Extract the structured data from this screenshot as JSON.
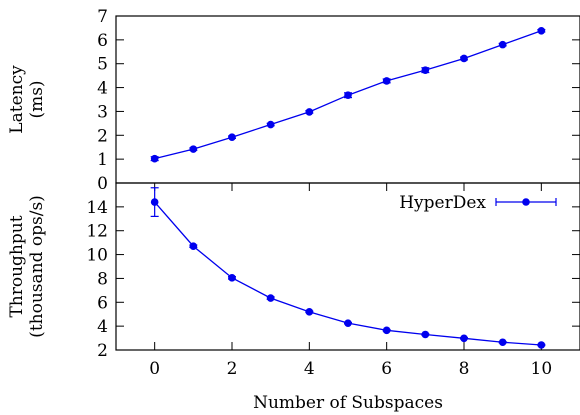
{
  "chart_data": [
    {
      "type": "line",
      "xlabel": "",
      "ylabel": [
        "Latency",
        "(ms)"
      ],
      "xlim": [
        -1,
        11
      ],
      "ylim": [
        0,
        7
      ],
      "yticks": [
        0,
        1,
        2,
        3,
        4,
        5,
        6,
        7
      ],
      "xticks": [],
      "grid": false,
      "color": "#0000ee",
      "series": [
        {
          "name": "",
          "x": [
            0,
            1,
            2,
            3,
            4,
            5,
            6,
            7,
            8,
            9,
            10
          ],
          "y": [
            1.02,
            1.42,
            1.92,
            2.45,
            2.98,
            3.68,
            4.28,
            4.73,
            5.22,
            5.8,
            6.38
          ],
          "err": [
            0.08,
            0.05,
            0.05,
            0.05,
            0.05,
            0.1,
            0.08,
            0.1,
            0.06,
            0.05,
            0.05
          ]
        }
      ]
    },
    {
      "type": "line",
      "xlabel": "Number of Subspaces",
      "ylabel": [
        "Throughput",
        "(thousand ops/s)"
      ],
      "xlim": [
        -1,
        11
      ],
      "ylim": [
        2,
        16
      ],
      "yticks": [
        2,
        4,
        6,
        8,
        10,
        12,
        14
      ],
      "xticks": [
        0,
        2,
        4,
        6,
        8,
        10
      ],
      "grid": false,
      "legend": "top-right",
      "color": "#0000ee",
      "series": [
        {
          "name": "HyperDex",
          "x": [
            0,
            1,
            2,
            3,
            4,
            5,
            6,
            7,
            8,
            9,
            10
          ],
          "y": [
            14.4,
            10.7,
            8.05,
            6.35,
            5.2,
            4.25,
            3.65,
            3.3,
            2.98,
            2.65,
            2.42
          ],
          "err": [
            1.2,
            0.1,
            0.1,
            0.1,
            0.05,
            0.05,
            0.05,
            0.05,
            0.05,
            0.05,
            0.05
          ]
        }
      ]
    }
  ]
}
